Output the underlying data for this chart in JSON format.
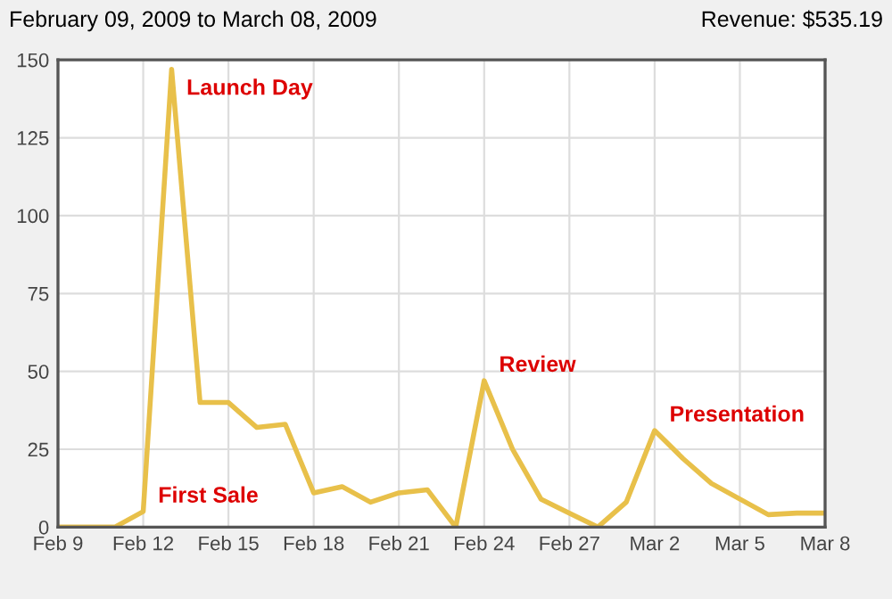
{
  "chart_data": {
    "type": "line",
    "title": "February 09, 2009 to March 08, 2009",
    "subtitle": "Revenue: $535.19",
    "x": [
      "2009-02-09",
      "2009-02-10",
      "2009-02-11",
      "2009-02-12",
      "2009-02-13",
      "2009-02-14",
      "2009-02-15",
      "2009-02-16",
      "2009-02-17",
      "2009-02-18",
      "2009-02-19",
      "2009-02-20",
      "2009-02-21",
      "2009-02-22",
      "2009-02-23",
      "2009-02-24",
      "2009-02-25",
      "2009-02-26",
      "2009-02-27",
      "2009-02-28",
      "2009-03-01",
      "2009-03-02",
      "2009-03-03",
      "2009-03-04",
      "2009-03-05",
      "2009-03-06",
      "2009-03-07",
      "2009-03-08"
    ],
    "series": [
      {
        "color": "#e8c04a",
        "values": [
          0,
          0,
          0,
          5,
          147,
          40,
          40,
          32,
          33,
          11,
          13,
          8,
          11,
          12,
          0,
          47,
          25,
          9,
          4.5,
          0,
          8,
          31,
          22,
          14,
          9,
          4,
          4.5,
          4.5
        ]
      }
    ],
    "xlim": [
      "2009-02-09",
      "2009-03-08"
    ],
    "xticks": [
      {
        "value": "2009-02-09",
        "label": "Feb 9"
      },
      {
        "value": "2009-02-12",
        "label": "Feb 12"
      },
      {
        "value": "2009-02-15",
        "label": "Feb 15"
      },
      {
        "value": "2009-02-18",
        "label": "Feb 18"
      },
      {
        "value": "2009-02-21",
        "label": "Feb 21"
      },
      {
        "value": "2009-02-24",
        "label": "Feb 24"
      },
      {
        "value": "2009-02-27",
        "label": "Feb 27"
      },
      {
        "value": "2009-03-02",
        "label": "Mar 2"
      },
      {
        "value": "2009-03-05",
        "label": "Mar 5"
      },
      {
        "value": "2009-03-08",
        "label": "Mar 8"
      }
    ],
    "ylim": [
      0,
      150
    ],
    "yticks": [
      0,
      25,
      50,
      75,
      100,
      125,
      150
    ],
    "grid": true,
    "marker": "none",
    "line_style": "solid",
    "annotations": [
      {
        "text": "First Sale",
        "x": "2009-02-12",
        "y": 5
      },
      {
        "text": "Launch Day",
        "x": "2009-02-13",
        "y": 147
      },
      {
        "text": "Review",
        "x": "2009-02-24",
        "y": 47
      },
      {
        "text": "Presentation",
        "x": "2009-03-02",
        "y": 31
      }
    ]
  }
}
